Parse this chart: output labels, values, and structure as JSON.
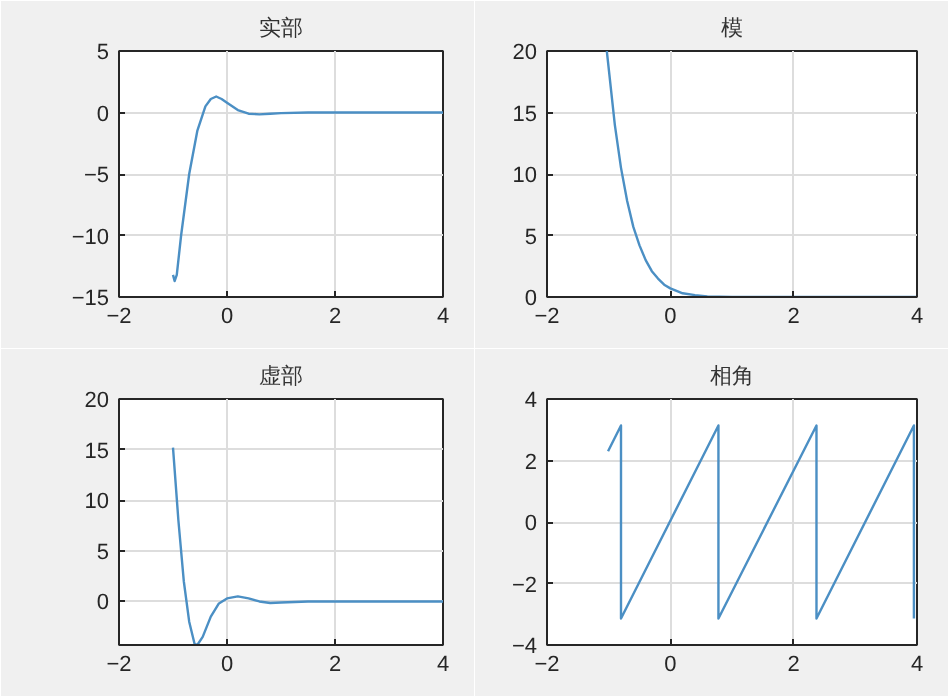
{
  "chart_data": [
    {
      "type": "line",
      "title": "实部",
      "xlim": [
        -2,
        4
      ],
      "ylim": [
        -15,
        5
      ],
      "xticks": [
        -2,
        0,
        2,
        4
      ],
      "yticks": [
        -15,
        -10,
        -5,
        0,
        5
      ],
      "grid": true,
      "x": [
        -1,
        -0.97,
        -0.93,
        -0.85,
        -0.7,
        -0.55,
        -0.4,
        -0.3,
        -0.2,
        -0.1,
        0,
        0.2,
        0.4,
        0.6,
        0.8,
        1,
        1.5,
        2,
        3,
        4
      ],
      "series": [
        {
          "color": "#4b8fc4",
          "values": [
            -13.2,
            -13.7,
            -13.2,
            -10,
            -5,
            -1.5,
            0.5,
            1.1,
            1.3,
            1.1,
            0.8,
            0.2,
            -0.1,
            -0.15,
            -0.1,
            -0.05,
            0,
            0,
            0,
            0
          ]
        }
      ]
    },
    {
      "type": "line",
      "title": "模",
      "xlim": [
        -2,
        4
      ],
      "ylim": [
        0,
        20
      ],
      "xticks": [
        -2,
        0,
        2,
        4
      ],
      "yticks": [
        0,
        5,
        10,
        15,
        20
      ],
      "grid": true,
      "x": [
        -1.03,
        -0.9,
        -0.8,
        -0.7,
        -0.6,
        -0.5,
        -0.4,
        -0.3,
        -0.2,
        -0.1,
        0,
        0.2,
        0.4,
        0.6,
        0.8,
        1,
        2,
        4
      ],
      "series": [
        {
          "color": "#4b8fc4",
          "values": [
            20,
            14,
            10.5,
            7.8,
            5.7,
            4.2,
            3,
            2.1,
            1.5,
            1,
            0.7,
            0.3,
            0.15,
            0.05,
            0.02,
            0,
            0,
            0
          ]
        }
      ]
    },
    {
      "type": "line",
      "title": "虚部",
      "xlim": [
        -2,
        4
      ],
      "ylim": [
        -4.3,
        20
      ],
      "xticks": [
        -2,
        0,
        2,
        4
      ],
      "yticks": [
        0,
        5,
        10,
        15,
        20
      ],
      "grid": true,
      "x": [
        -1,
        -0.9,
        -0.8,
        -0.7,
        -0.6,
        -0.55,
        -0.45,
        -0.3,
        -0.15,
        0,
        0.2,
        0.4,
        0.6,
        0.8,
        1,
        1.5,
        2,
        4
      ],
      "series": [
        {
          "color": "#4b8fc4",
          "values": [
            15.2,
            8,
            2,
            -2,
            -4.2,
            -4.3,
            -3.5,
            -1.5,
            -0.2,
            0.3,
            0.5,
            0.3,
            0,
            -0.15,
            -0.1,
            0,
            0,
            0
          ]
        }
      ]
    },
    {
      "type": "line",
      "title": "相角",
      "xlim": [
        -2,
        4
      ],
      "ylim": [
        -4,
        4
      ],
      "xticks": [
        -2,
        0,
        2,
        4
      ],
      "yticks": [
        -4,
        -2,
        0,
        2,
        4
      ],
      "grid": true,
      "x": [
        -1.01,
        -0.8,
        -0.8,
        0.78,
        0.78,
        2.37,
        2.37,
        3.95,
        3.95
      ],
      "series": [
        {
          "color": "#4b8fc4",
          "values": [
            2.3,
            3.14,
            -3.14,
            3.14,
            -3.14,
            3.14,
            -3.14,
            3.14,
            -3.14
          ]
        }
      ]
    }
  ]
}
